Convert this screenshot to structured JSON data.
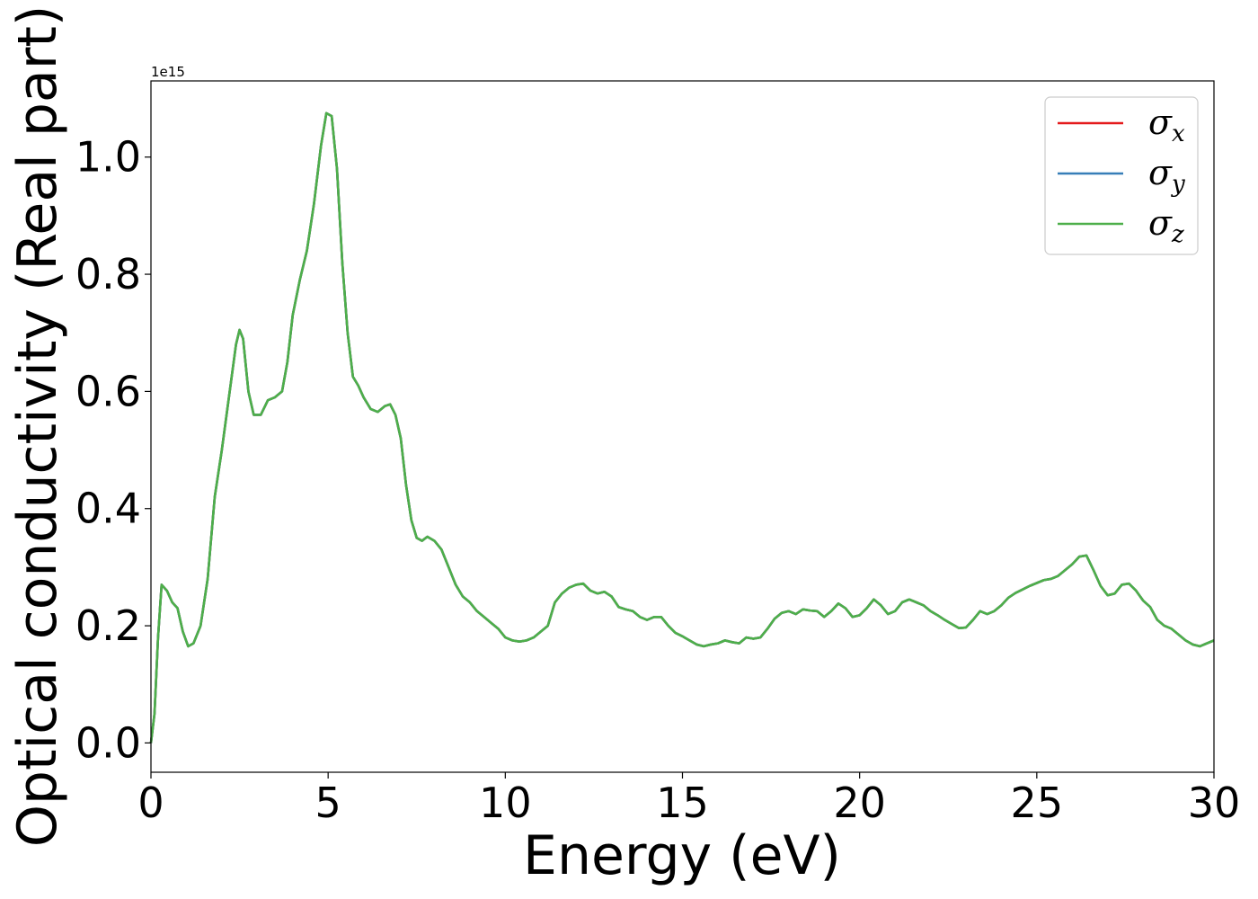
{
  "chart_data": {
    "type": "line",
    "xlabel": "Energy (eV)",
    "ylabel": "Optical conductivity (Real part)",
    "y_offset_label": "1e15",
    "xlim": [
      0,
      30
    ],
    "ylim": [
      -0.05,
      1.13
    ],
    "xticks": [
      0,
      5,
      10,
      15,
      20,
      25,
      30
    ],
    "xtick_labels": [
      "0",
      "5",
      "10",
      "15",
      "20",
      "25",
      "30"
    ],
    "yticks": [
      0.0,
      0.2,
      0.4,
      0.6,
      0.8,
      1.0
    ],
    "ytick_labels": [
      "0.0",
      "0.2",
      "0.4",
      "0.6",
      "0.8",
      "1.0"
    ],
    "grid": false,
    "legend_position": "top-right",
    "series": [
      {
        "name": "σ",
        "subscript": "x",
        "color": "#e41a1c"
      },
      {
        "name": "σ",
        "subscript": "y",
        "color": "#377eb8"
      },
      {
        "name": "σ",
        "subscript": "z",
        "color": "#4daf4a"
      }
    ],
    "x": [
      0,
      0.1,
      0.2,
      0.3,
      0.45,
      0.6,
      0.75,
      0.9,
      1.05,
      1.2,
      1.4,
      1.6,
      1.8,
      2.0,
      2.2,
      2.4,
      2.5,
      2.6,
      2.75,
      2.9,
      3.1,
      3.3,
      3.5,
      3.7,
      3.85,
      4.0,
      4.2,
      4.4,
      4.6,
      4.8,
      4.95,
      5.1,
      5.25,
      5.4,
      5.55,
      5.7,
      5.85,
      6.0,
      6.2,
      6.4,
      6.6,
      6.75,
      6.9,
      7.05,
      7.2,
      7.35,
      7.5,
      7.65,
      7.8,
      8.0,
      8.2,
      8.4,
      8.6,
      8.8,
      9.0,
      9.2,
      9.4,
      9.6,
      9.8,
      10.0,
      10.2,
      10.4,
      10.6,
      10.8,
      11.0,
      11.2,
      11.4,
      11.6,
      11.8,
      12.0,
      12.2,
      12.4,
      12.6,
      12.8,
      13.0,
      13.2,
      13.4,
      13.6,
      13.8,
      14.0,
      14.2,
      14.4,
      14.6,
      14.8,
      15.0,
      15.2,
      15.4,
      15.6,
      15.8,
      16.0,
      16.2,
      16.4,
      16.6,
      16.8,
      17.0,
      17.2,
      17.4,
      17.6,
      17.8,
      18.0,
      18.2,
      18.4,
      18.6,
      18.8,
      19.0,
      19.2,
      19.4,
      19.6,
      19.8,
      20.0,
      20.2,
      20.4,
      20.6,
      20.8,
      21.0,
      21.2,
      21.4,
      21.6,
      21.8,
      22.0,
      22.2,
      22.4,
      22.6,
      22.8,
      23.0,
      23.2,
      23.4,
      23.6,
      23.8,
      24.0,
      24.2,
      24.4,
      24.6,
      24.8,
      25.0,
      25.2,
      25.4,
      25.6,
      25.8,
      26.0,
      26.2,
      26.4,
      26.6,
      26.8,
      27.0,
      27.2,
      27.4,
      27.6,
      27.8,
      28.0,
      28.2,
      28.4,
      28.6,
      28.8,
      29.0,
      29.2,
      29.4,
      29.6,
      29.8,
      30.0
    ],
    "y": [
      0.0,
      0.05,
      0.18,
      0.27,
      0.26,
      0.24,
      0.23,
      0.19,
      0.165,
      0.17,
      0.2,
      0.28,
      0.42,
      0.5,
      0.59,
      0.68,
      0.705,
      0.69,
      0.6,
      0.56,
      0.56,
      0.585,
      0.59,
      0.6,
      0.65,
      0.73,
      0.79,
      0.84,
      0.92,
      1.02,
      1.075,
      1.07,
      0.98,
      0.82,
      0.7,
      0.625,
      0.61,
      0.59,
      0.57,
      0.565,
      0.575,
      0.578,
      0.56,
      0.52,
      0.44,
      0.38,
      0.35,
      0.345,
      0.352,
      0.345,
      0.33,
      0.3,
      0.27,
      0.25,
      0.24,
      0.225,
      0.215,
      0.205,
      0.195,
      0.18,
      0.175,
      0.173,
      0.175,
      0.18,
      0.19,
      0.2,
      0.24,
      0.255,
      0.265,
      0.27,
      0.272,
      0.26,
      0.255,
      0.258,
      0.25,
      0.232,
      0.228,
      0.225,
      0.215,
      0.21,
      0.215,
      0.215,
      0.2,
      0.188,
      0.182,
      0.175,
      0.168,
      0.165,
      0.168,
      0.17,
      0.175,
      0.172,
      0.17,
      0.18,
      0.178,
      0.18,
      0.195,
      0.212,
      0.222,
      0.225,
      0.22,
      0.228,
      0.226,
      0.225,
      0.215,
      0.225,
      0.238,
      0.23,
      0.215,
      0.218,
      0.23,
      0.245,
      0.235,
      0.22,
      0.225,
      0.24,
      0.245,
      0.24,
      0.235,
      0.225,
      0.218,
      0.21,
      0.203,
      0.196,
      0.197,
      0.21,
      0.225,
      0.22,
      0.225,
      0.235,
      0.248,
      0.256,
      0.262,
      0.268,
      0.273,
      0.278,
      0.28,
      0.285,
      0.295,
      0.305,
      0.318,
      0.32,
      0.295,
      0.268,
      0.252,
      0.255,
      0.27,
      0.272,
      0.26,
      0.243,
      0.232,
      0.21,
      0.2,
      0.195,
      0.185,
      0.175,
      0.168,
      0.165,
      0.17,
      0.175
    ]
  }
}
